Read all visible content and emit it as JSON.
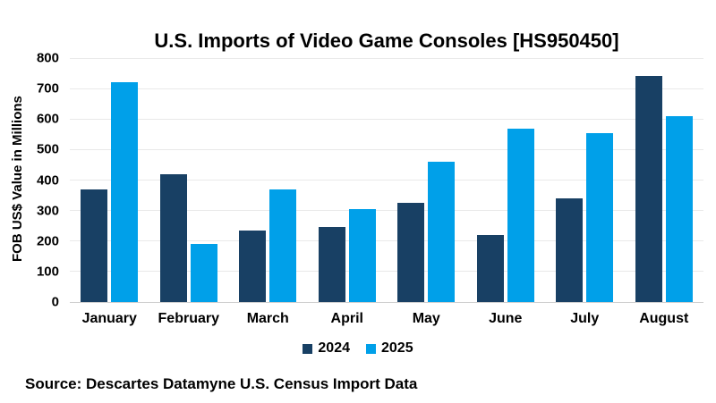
{
  "chart": {
    "title": "U.S. Imports of Video Game Consoles [HS950450]",
    "ylabel": "FOB US$ Value in Millions",
    "source": "Source: Descartes Datamyne U.S. Census Import Data"
  },
  "chart_data": {
    "type": "bar",
    "title": "U.S. Imports of Video Game Consoles [HS950450]",
    "xlabel": "",
    "ylabel": "FOB US$ Value in Millions",
    "categories": [
      "January",
      "February",
      "March",
      "April",
      "May",
      "June",
      "July",
      "August"
    ],
    "series": [
      {
        "name": "2024",
        "color": "#184064",
        "values": [
          370,
          420,
          235,
          245,
          325,
          220,
          340,
          740
        ]
      },
      {
        "name": "2025",
        "color": "#00A0E9",
        "values": [
          720,
          190,
          370,
          305,
          460,
          570,
          555,
          610
        ]
      }
    ],
    "ylim": [
      0,
      800
    ],
    "ytick_step": 100,
    "yticks": [
      0,
      100,
      200,
      300,
      400,
      500,
      600,
      700,
      800
    ],
    "grid": "horizontal",
    "legend_position": "bottom-center",
    "source": "Source: Descartes Datamyne U.S. Census Import Data"
  },
  "colors": {
    "series_2024": "#184064",
    "series_2025": "#00A0E9",
    "gridline": "#E9E9E9",
    "axis_line": "#CFCFCF",
    "text": "#000000",
    "background": "#FFFFFF"
  }
}
